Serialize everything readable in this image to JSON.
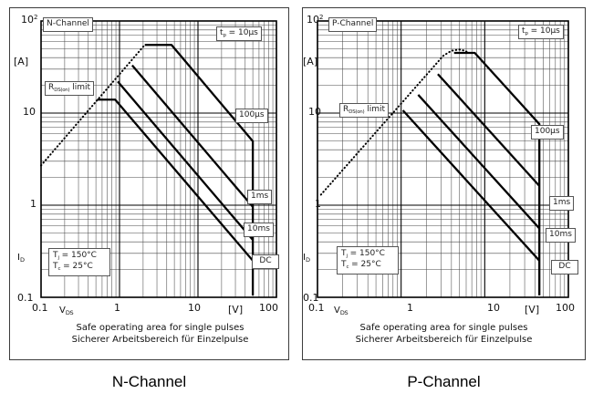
{
  "panels": [
    {
      "title_box": "N-Channel",
      "footer": "N-Channel",
      "tp_label": [
        {
          "t": "t"
        },
        {
          "sub": "p"
        },
        {
          "t": " = 10µs"
        }
      ],
      "r_label": [
        {
          "t": "R"
        },
        {
          "sub": "DS(on)"
        },
        {
          "t": " limit"
        }
      ],
      "temp_lines": [
        [
          {
            "t": "T"
          },
          {
            "sub": "j"
          },
          {
            "t": " = 150°C"
          }
        ],
        [
          {
            "t": "T"
          },
          {
            "sub": "c"
          },
          {
            "t": " = 25°C"
          }
        ]
      ],
      "right_labels": {
        "l100us": "100µs",
        "l1ms": "1ms",
        "l10ms": "10ms",
        "ldc": "DC"
      },
      "y_axis": {
        "top": [
          {
            "t": "10"
          },
          {
            "sup": "2"
          }
        ],
        "unit": "[A]",
        "t10": "10",
        "t1": "1",
        "t01": "0.1",
        "quantity": [
          {
            "t": "I"
          },
          {
            "sub": "D"
          }
        ]
      },
      "x_axis": {
        "t01": "0.1",
        "quantity": [
          {
            "t": "V"
          },
          {
            "sub": "DS"
          }
        ],
        "t1": "1",
        "t10": "10",
        "unit": "[V]",
        "t100": "100"
      },
      "caption": [
        "Safe operating area for single pulses",
        "Sicherer Arbeitsbereich für Einzelpulse"
      ]
    },
    {
      "title_box": "P-Channel",
      "footer": "P-Channel",
      "tp_label": [
        {
          "t": "t"
        },
        {
          "sub": "p"
        },
        {
          "t": " = 10µs"
        }
      ],
      "r_label": [
        {
          "t": "R"
        },
        {
          "sub": "DS(on)"
        },
        {
          "t": " limit"
        }
      ],
      "temp_lines": [
        [
          {
            "t": "T"
          },
          {
            "sub": "j"
          },
          {
            "t": " = 150°C"
          }
        ],
        [
          {
            "t": "T"
          },
          {
            "sub": "c"
          },
          {
            "t": " = 25°C"
          }
        ]
      ],
      "right_labels": {
        "l100us": "100µs",
        "l1ms": "1ms",
        "l10ms": "10ms",
        "ldc": "DC"
      },
      "y_axis": {
        "top": [
          {
            "t": "10"
          },
          {
            "sup": "2"
          }
        ],
        "unit": "[A]",
        "t10": "10",
        "t1": "1",
        "t01": "0.1",
        "quantity": [
          {
            "t": "I"
          },
          {
            "sub": "D"
          }
        ]
      },
      "x_axis": {
        "t01": "0.1",
        "quantity": [
          {
            "t": "V"
          },
          {
            "sub": "DS"
          }
        ],
        "t1": "1",
        "t10": "10",
        "unit": "[V]",
        "t100": "100"
      },
      "caption": [
        "Safe operating area for single pulses",
        "Sicherer Arbeitsbereich für Einzelpulse"
      ]
    }
  ],
  "chart_data": [
    {
      "id": "n-channel-soa",
      "type": "line",
      "title": "N-Channel safe operating area for single pulses",
      "xlabel": "V_DS [V]",
      "ylabel": "I_D [A]",
      "xscale": "log",
      "yscale": "log",
      "xlim": [
        0.1,
        100
      ],
      "ylim": [
        0.1,
        100
      ],
      "grid": true,
      "legend_position": "labels-on-curves",
      "series": [
        {
          "name": "R_DS(on) limit",
          "style": "dotted",
          "points": [
            [
              0.1,
              2.7
            ],
            [
              2.1,
              55
            ]
          ]
        },
        {
          "name": "t_p = 10µs",
          "style": "solid",
          "points": [
            [
              2.1,
              55
            ],
            [
              4.6,
              55
            ],
            [
              50,
              4.95
            ],
            [
              50,
              0.105
            ]
          ]
        },
        {
          "name": "100µs",
          "style": "solid",
          "points": [
            [
              1.45,
              33
            ],
            [
              50,
              0.96
            ]
          ]
        },
        {
          "name": "1ms",
          "style": "solid",
          "points": [
            [
              0.95,
              22
            ],
            [
              50,
              0.42
            ]
          ]
        },
        {
          "name": "10ms / DC",
          "style": "solid",
          "points": [
            [
              0.52,
              14
            ],
            [
              0.88,
              14
            ],
            [
              50,
              0.25
            ]
          ]
        }
      ]
    },
    {
      "id": "p-channel-soa",
      "type": "line",
      "title": "P-Channel safe operating area for single pulses",
      "xlabel": "V_DS [V]",
      "ylabel": "I_D [A]",
      "xscale": "log",
      "yscale": "log",
      "xlim": [
        0.1,
        100
      ],
      "ylim": [
        0.1,
        100
      ],
      "grid": true,
      "legend_position": "labels-on-curves",
      "series": [
        {
          "name": "R_DS(on) limit",
          "style": "dotted",
          "points": [
            [
              0.11,
              1.3
            ],
            [
              3.2,
              42
            ],
            [
              4.0,
              47.5
            ],
            [
              4.9,
              49
            ],
            [
              5.8,
              47.5
            ],
            [
              6.4,
              45
            ]
          ]
        },
        {
          "name": "t_p = 10µs",
          "style": "solid",
          "points": [
            [
              4.3,
              45
            ],
            [
              7.6,
              45
            ],
            [
              45,
              7.6
            ],
            [
              45,
              0.105
            ]
          ]
        },
        {
          "name": "100µs",
          "style": "solid",
          "points": [
            [
              2.75,
              26.5
            ],
            [
              45,
              1.62
            ]
          ]
        },
        {
          "name": "1ms",
          "style": "solid",
          "points": [
            [
              1.6,
              15.8
            ],
            [
              45,
              0.56
            ]
          ]
        },
        {
          "name": "10ms / DC",
          "style": "solid",
          "points": [
            [
              1.05,
              10.7
            ],
            [
              45,
              0.25
            ]
          ]
        }
      ]
    }
  ],
  "colors": {
    "curve": "#000000",
    "grid_minor": "#4a4a4a",
    "grid_major": "#000000",
    "background": "#ffffff"
  }
}
